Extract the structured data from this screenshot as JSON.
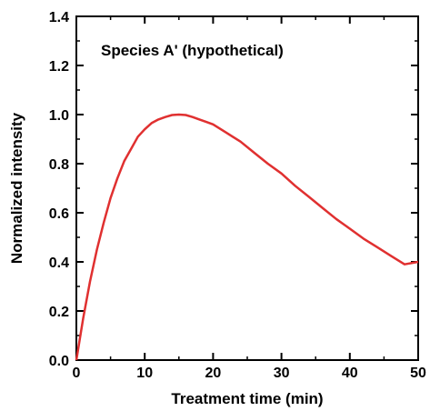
{
  "chart_data": {
    "type": "line",
    "title": "",
    "annotation": "Species A' (hypothetical)",
    "xlabel": "Treatment time (min)",
    "ylabel": "Normalized intensity",
    "xlim": [
      0,
      50
    ],
    "ylim": [
      0,
      1.4
    ],
    "x_ticks": [
      0,
      10,
      20,
      30,
      40,
      50
    ],
    "y_ticks": [
      0.0,
      0.2,
      0.4,
      0.6,
      0.8,
      1.0,
      1.2,
      1.4
    ],
    "x_tick_labels": [
      "0",
      "10",
      "20",
      "30",
      "40",
      "50"
    ],
    "y_tick_labels": [
      "0.0",
      "0.2",
      "0.4",
      "0.6",
      "0.8",
      "1.0",
      "1.2",
      "1.4"
    ],
    "grid": false,
    "line_color": "#e03030",
    "series": [
      {
        "x": [
          0,
          1,
          2,
          3,
          4,
          5,
          6,
          7,
          8,
          9,
          10,
          11,
          12,
          13,
          14,
          15,
          16,
          17,
          18,
          19,
          20,
          22,
          24,
          26,
          28,
          30,
          32,
          34,
          36,
          38,
          40,
          42,
          44,
          46,
          48,
          50
        ],
        "y": [
          0.0,
          0.17,
          0.32,
          0.45,
          0.56,
          0.66,
          0.74,
          0.81,
          0.86,
          0.91,
          0.94,
          0.965,
          0.98,
          0.99,
          0.998,
          1.0,
          0.998,
          0.99,
          0.98,
          0.97,
          0.96,
          0.925,
          0.89,
          0.845,
          0.8,
          0.76,
          0.71,
          0.665,
          0.62,
          0.575,
          0.535,
          0.495,
          0.46,
          0.425,
          0.39,
          0.4
        ]
      }
    ]
  }
}
